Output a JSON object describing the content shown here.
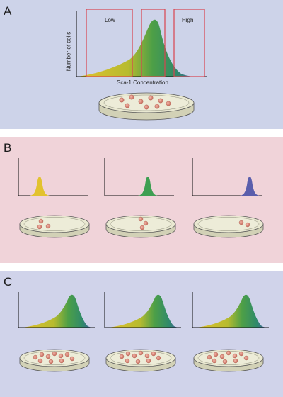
{
  "colors": {
    "panel_a_bg": "#cdd3e9",
    "panel_b_bg": "#f0d3d9",
    "panel_c_bg": "#d0d3ea",
    "gate_box": "#d9434f",
    "yellow": "#e2c22e",
    "green": "#3e9f52",
    "blue": "#5a5eac",
    "cell": "#dd8a7b",
    "dish_fill": "#e9e8d1"
  },
  "panel_a": {
    "letter": "A",
    "y_axis_label": "Number of cells",
    "x_axis_label": "Sca-1 Concentration",
    "gates": {
      "low": "Low",
      "high": "High"
    },
    "cell_count": 9
  },
  "panel_b": {
    "letter": "B",
    "subpanels": [
      {
        "peak_color": "yellow",
        "cell_count": 3
      },
      {
        "peak_color": "green",
        "cell_count": 3
      },
      {
        "peak_color": "blue",
        "cell_count": 2
      }
    ]
  },
  "panel_c": {
    "letter": "C",
    "subpanels": [
      {
        "cell_count": 10
      },
      {
        "cell_count": 10
      },
      {
        "cell_count": 10
      }
    ]
  }
}
